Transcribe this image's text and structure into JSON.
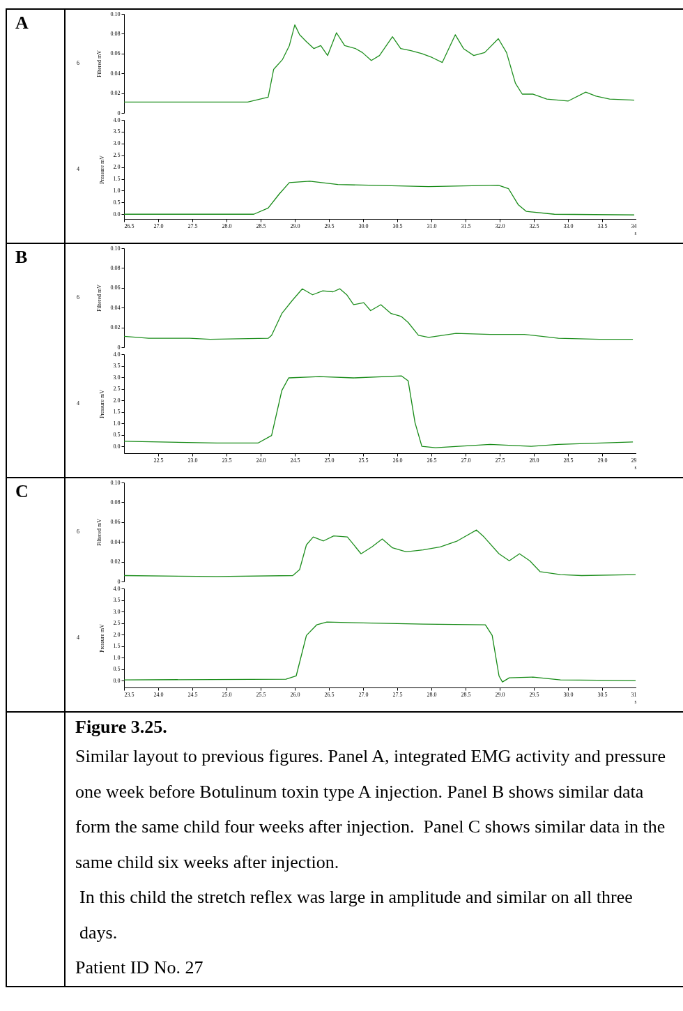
{
  "chart_data": [
    {
      "type": "line",
      "title": "A",
      "ylabel": "Filtered mV",
      "annotations": [
        "6"
      ],
      "tick_labels": "y",
      "xlim": [
        26.5,
        34.0
      ],
      "ylim": [
        0,
        0.1
      ],
      "yticks": [
        {
          "value": 0,
          "label": "0"
        },
        0.02,
        0.04,
        0.06,
        0.08,
        {
          "value": 0.1,
          "label": "0.10"
        }
      ],
      "series": [
        {
          "color": "#1f8f1f",
          "x": [
            26.5,
            28.31,
            28.61,
            28.69,
            28.82,
            28.92,
            29.0,
            29.07,
            29.17,
            29.28,
            29.38,
            29.48,
            29.61,
            29.73,
            29.89,
            29.99,
            30.12,
            30.24,
            30.43,
            30.55,
            30.7,
            30.86,
            31.01,
            31.16,
            31.35,
            31.47,
            31.62,
            31.78,
            31.98,
            32.1,
            32.23,
            32.33,
            32.49,
            32.69,
            33.0,
            33.26,
            33.41,
            33.61,
            33.97
          ],
          "values": [
            0.011,
            0.011,
            0.016,
            0.044,
            0.054,
            0.068,
            0.089,
            0.079,
            0.072,
            0.065,
            0.068,
            0.058,
            0.081,
            0.068,
            0.065,
            0.061,
            0.053,
            0.058,
            0.077,
            0.065,
            0.063,
            0.06,
            0.056,
            0.051,
            0.079,
            0.065,
            0.058,
            0.061,
            0.075,
            0.061,
            0.03,
            0.019,
            0.019,
            0.014,
            0.012,
            0.021,
            0.017,
            0.014,
            0.013
          ]
        }
      ]
    },
    {
      "type": "line",
      "ylabel": "Pressure mV",
      "xlabel": "s",
      "annotations": [
        "4"
      ],
      "xlim": [
        26.5,
        34.0
      ],
      "ylim": [
        -0.2,
        4.0
      ],
      "xticks": [
        26.5,
        {
          "value": 27,
          "label": "27.0"
        },
        27.5,
        {
          "value": 28,
          "label": "28.0"
        },
        28.5,
        {
          "value": 29,
          "label": "29.0"
        },
        29.5,
        {
          "value": 30,
          "label": "30.0"
        },
        30.5,
        {
          "value": 31,
          "label": "31.0"
        },
        31.5,
        {
          "value": 32,
          "label": "32.0"
        },
        32.5,
        {
          "value": 33,
          "label": "33.0"
        },
        33.5,
        34
      ],
      "yticks": [
        {
          "value": 0,
          "label": "0.0"
        },
        0.5,
        {
          "value": 1,
          "label": "1.0"
        },
        1.5,
        {
          "value": 2,
          "label": "2.0"
        },
        2.5,
        {
          "value": 3,
          "label": "3.0"
        },
        3.5,
        {
          "value": 4,
          "label": "4.0"
        }
      ],
      "series": [
        {
          "color": "#168a16",
          "x": [
            26.5,
            28.4,
            28.61,
            28.77,
            28.92,
            29.22,
            29.63,
            30.96,
            31.98,
            32.13,
            32.27,
            32.39,
            32.8,
            33.97
          ],
          "values": [
            0.0,
            0.0,
            0.26,
            0.85,
            1.34,
            1.4,
            1.26,
            1.17,
            1.23,
            1.08,
            0.41,
            0.12,
            0.0,
            -0.03
          ]
        }
      ]
    },
    {
      "type": "line",
      "title": "B",
      "ylabel": "Filtered mV",
      "annotations": [
        "6"
      ],
      "tick_labels": "y",
      "xlim": [
        22.0,
        29.5
      ],
      "ylim": [
        0,
        0.1
      ],
      "yticks": [
        {
          "value": 0,
          "label": "0"
        },
        0.02,
        0.04,
        0.06,
        0.08,
        {
          "value": 0.1,
          "label": "0.10"
        }
      ],
      "series": [
        {
          "color": "#1f8f1f",
          "x": [
            22.0,
            22.36,
            22.96,
            23.26,
            24.11,
            24.16,
            24.31,
            24.46,
            24.61,
            24.76,
            24.91,
            25.06,
            25.16,
            25.26,
            25.36,
            25.51,
            25.61,
            25.76,
            25.91,
            26.06,
            26.16,
            26.31,
            26.46,
            26.86,
            27.36,
            27.86,
            28.36,
            28.96,
            29.45
          ],
          "values": [
            0.011,
            0.009,
            0.009,
            0.008,
            0.009,
            0.012,
            0.034,
            0.047,
            0.059,
            0.053,
            0.057,
            0.056,
            0.059,
            0.053,
            0.043,
            0.045,
            0.037,
            0.043,
            0.034,
            0.031,
            0.025,
            0.012,
            0.01,
            0.014,
            0.013,
            0.013,
            0.009,
            0.008,
            0.008
          ]
        }
      ]
    },
    {
      "type": "line",
      "ylabel": "Pressure mV",
      "xlabel": "s",
      "annotations": [
        "4"
      ],
      "xlim": [
        22.0,
        29.5
      ],
      "ylim": [
        -0.3,
        4.0
      ],
      "xticks": [
        22.5,
        {
          "value": 23,
          "label": "23.0"
        },
        23.5,
        {
          "value": 24,
          "label": "24.0"
        },
        24.5,
        {
          "value": 25,
          "label": "25.0"
        },
        25.5,
        {
          "value": 26,
          "label": "26.0"
        },
        26.5,
        {
          "value": 27,
          "label": "27.0"
        },
        27.5,
        {
          "value": 28,
          "label": "28.0"
        },
        28.5,
        {
          "value": 29,
          "label": "29.0"
        },
        {
          "value": 29.5,
          "label": "29"
        }
      ],
      "yticks": [
        {
          "value": 0,
          "label": "0.0"
        },
        0.5,
        {
          "value": 1,
          "label": "1.0"
        },
        1.5,
        {
          "value": 2,
          "label": "2.0"
        },
        2.5,
        {
          "value": 3,
          "label": "3.0"
        },
        3.5,
        {
          "value": 4,
          "label": "4.0"
        }
      ],
      "series": [
        {
          "color": "#168a16",
          "x": [
            22.0,
            23.36,
            23.96,
            24.16,
            24.31,
            24.41,
            24.86,
            25.36,
            26.06,
            26.16,
            26.26,
            26.36,
            26.56,
            27.36,
            27.96,
            28.36,
            29.45
          ],
          "values": [
            0.22,
            0.14,
            0.14,
            0.47,
            2.42,
            2.97,
            3.03,
            2.97,
            3.06,
            2.84,
            1.03,
            0.0,
            -0.06,
            0.08,
            0.0,
            0.08,
            0.19
          ]
        }
      ]
    },
    {
      "type": "line",
      "title": "C",
      "ylabel": "Filtered mV",
      "annotations": [
        "6"
      ],
      "tick_labels": "y",
      "xlim": [
        23.5,
        31.0
      ],
      "ylim": [
        0,
        0.1
      ],
      "yticks": [
        {
          "value": 0,
          "label": "0"
        },
        0.02,
        0.04,
        0.06,
        0.08,
        {
          "value": 0.1,
          "label": "0.10"
        }
      ],
      "series": [
        {
          "color": "#1f8f1f",
          "x": [
            23.5,
            24.86,
            25.97,
            26.07,
            26.17,
            26.27,
            26.42,
            26.57,
            26.77,
            26.97,
            27.13,
            27.28,
            27.43,
            27.63,
            27.88,
            28.13,
            28.38,
            28.66,
            28.77,
            28.99,
            29.14,
            29.29,
            29.44,
            29.59,
            29.89,
            30.2,
            30.99
          ],
          "values": [
            0.006,
            0.005,
            0.006,
            0.012,
            0.037,
            0.045,
            0.041,
            0.046,
            0.045,
            0.028,
            0.035,
            0.043,
            0.034,
            0.03,
            0.032,
            0.035,
            0.041,
            0.052,
            0.045,
            0.028,
            0.021,
            0.028,
            0.021,
            0.01,
            0.007,
            0.006,
            0.007
          ]
        }
      ]
    },
    {
      "type": "line",
      "ylabel": "Pressure mV",
      "xlabel": "s",
      "annotations": [
        "4"
      ],
      "xlim": [
        23.5,
        31.0
      ],
      "ylim": [
        -0.3,
        4.0
      ],
      "xticks": [
        23.5,
        {
          "value": 24,
          "label": "24.0"
        },
        24.5,
        {
          "value": 25,
          "label": "25.0"
        },
        25.5,
        {
          "value": 26,
          "label": "26.0"
        },
        26.5,
        {
          "value": 27,
          "label": "27.0"
        },
        27.5,
        {
          "value": 28,
          "label": "28.0"
        },
        28.5,
        {
          "value": 29,
          "label": "29.0"
        },
        29.5,
        {
          "value": 30,
          "label": "30.0"
        },
        30.5,
        31
      ],
      "yticks": [
        {
          "value": 0,
          "label": "0.0"
        },
        0.5,
        {
          "value": 1,
          "label": "1.0"
        },
        1.5,
        {
          "value": 2,
          "label": "2.0"
        },
        2.5,
        {
          "value": 3,
          "label": "3.0"
        },
        3.5,
        {
          "value": 4,
          "label": "4.0"
        }
      ],
      "series": [
        {
          "color": "#168a16",
          "x": [
            23.5,
            25.87,
            26.02,
            26.17,
            26.32,
            26.47,
            26.87,
            27.88,
            28.79,
            28.89,
            28.99,
            29.04,
            29.14,
            29.49,
            29.89,
            30.99
          ],
          "values": [
            0.03,
            0.06,
            0.2,
            1.96,
            2.42,
            2.54,
            2.51,
            2.45,
            2.42,
            1.96,
            0.2,
            -0.06,
            0.12,
            0.15,
            0.03,
            0.0
          ]
        }
      ]
    },
    {
      "type": "other",
      "title": "Figure 3.25.",
      "annotations": [
        "Similar layout to previous figures. Panel A, integrated EMG activity and pressure one week before Botulinum toxin type A injection. Panel B shows similar data form the same child four weeks after injection.  Panel C shows similar data in the same child six weeks after injection.",
        "In this child the stretch reflex was large in amplitude and similar on all three days.",
        "Patient ID No. 27"
      ]
    }
  ]
}
